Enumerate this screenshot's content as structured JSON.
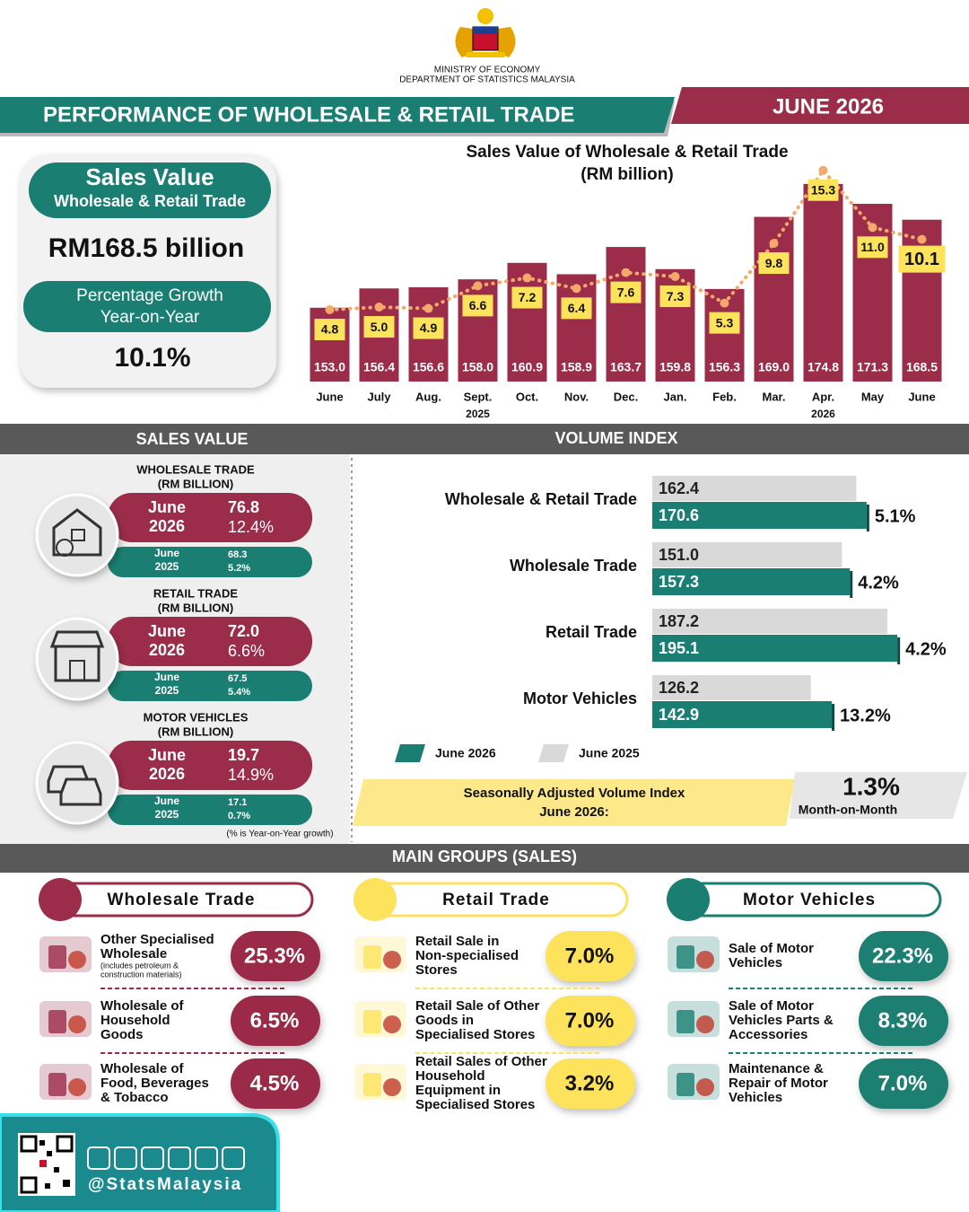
{
  "header": {
    "ministry": "MINISTRY OF ECONOMY",
    "department": "DEPARTMENT OF STATISTICS MALAYSIA",
    "title": "PERFORMANCE OF WHOLESALE & RETAIL TRADE",
    "period": "JUNE 2026"
  },
  "summary": {
    "title": "Sales Value",
    "subtitle": "Wholesale & Retail Trade",
    "value": "RM168.5 billion",
    "growth_title": "Percentage Growth",
    "growth_subtitle": "Year-on-Year",
    "growth": "10.1%"
  },
  "chart_data": [
    {
      "type": "bar",
      "title": "Sales Value of Wholesale & Retail Trade",
      "subtitle": "(RM billion)",
      "categories": [
        "June",
        "July",
        "Aug.",
        "Sept.",
        "Oct.",
        "Nov.",
        "Dec.",
        "Jan.",
        "Feb.",
        "Mar.",
        "Apr.",
        "May",
        "June"
      ],
      "year_labels": [
        "2025",
        "2026"
      ],
      "series": [
        {
          "color": "#9b2c4a",
          "values": [
            153.0,
            156.4,
            156.6,
            158.0,
            160.9,
            158.9,
            163.7,
            159.8,
            156.3,
            169.0,
            174.8,
            171.3,
            168.5
          ],
          "value_labels": [
            "153.0",
            "156.4",
            "156.6",
            "158.0",
            "160.9",
            "158.9",
            "163.7",
            "159.8",
            "156.3",
            "169.0",
            "174.8",
            "171.3",
            "168.5"
          ]
        },
        {
          "type": "line",
          "axis": "y2",
          "color": "#f4a86a",
          "label_color": "#fde25c",
          "values": [
            4.8,
            5.0,
            4.9,
            6.6,
            7.2,
            6.4,
            7.6,
            7.3,
            5.3,
            9.8,
            15.3,
            11.0,
            10.1
          ],
          "value_labels": [
            "4.8",
            "5.0",
            "4.9",
            "6.6",
            "7.2",
            "6.4",
            "7.6",
            "7.3",
            "5.3",
            "9.8",
            "15.3",
            "11.0",
            "10.1"
          ]
        }
      ],
      "ylim": [
        140,
        180
      ],
      "y2lim": [
        0,
        16.5
      ]
    },
    {
      "type": "hbar",
      "title": "VOLUME INDEX",
      "categories": [
        "Wholesale & Retail Trade",
        "Wholesale Trade",
        "Retail Trade",
        "Motor Vehicles"
      ],
      "series": [
        {
          "name": "June 2026",
          "color": "#1a7f72",
          "values": [
            170.6,
            157.3,
            195.1,
            142.9
          ],
          "value_labels": [
            "170.6",
            "157.3",
            "195.1",
            "142.9"
          ]
        },
        {
          "name": "June 2025",
          "color": "#d9d9d9",
          "values": [
            162.4,
            151.0,
            187.2,
            126.2
          ],
          "value_labels": [
            "162.4",
            "151.0",
            "187.2",
            "126.2"
          ]
        }
      ],
      "growth": {
        "values": [
          5.1,
          4.2,
          4.2,
          13.2
        ],
        "value_labels": [
          "5.1%",
          "4.2%",
          "4.2%",
          "13.2%"
        ]
      },
      "xlim": [
        0,
        250
      ]
    }
  ],
  "seasonal": {
    "label_line1": "Seasonally Adjusted Volume Index",
    "label_line2": "June 2026:",
    "value": "1.3%",
    "basis": "Month-on-Month"
  },
  "sales_value": {
    "title": "SALES VALUE",
    "items": [
      {
        "title": "WHOLESALE TRADE",
        "unit": "(RM BILLION)",
        "current_month": "June",
        "current_year": "2026",
        "current_value": "76.8",
        "current_growth": "12.4%",
        "previous_month": "June",
        "previous_year": "2025",
        "previous_value": "68.3",
        "previous_growth": "5.2%"
      },
      {
        "title": "RETAIL TRADE",
        "unit": "(RM BILLION)",
        "current_month": "June",
        "current_year": "2026",
        "current_value": "72.0",
        "current_growth": "6.6%",
        "previous_month": "June",
        "previous_year": "2025",
        "previous_value": "67.5",
        "previous_growth": "5.4%"
      },
      {
        "title": "MOTOR VEHICLES",
        "unit": "(RM BILLION)",
        "current_month": "June",
        "current_year": "2026",
        "current_value": "19.7",
        "current_growth": "14.9%",
        "previous_month": "June",
        "previous_year": "2025",
        "previous_value": "17.1",
        "previous_growth": "0.7%"
      }
    ],
    "note": "(% is Year-on-Year growth)"
  },
  "main_groups": {
    "title": "MAIN GROUPS (SALES)",
    "groups": [
      {
        "name": "Wholesale Trade",
        "color": "#9b2c4a",
        "items": [
          {
            "label": [
              "Other Specialised",
              "Wholesale"
            ],
            "note": [
              "(includes petroleum &",
              "construction materials)"
            ],
            "value": "25.3%"
          },
          {
            "label": [
              "Wholesale of",
              "Household",
              "Goods"
            ],
            "value": "6.5%"
          },
          {
            "label": [
              "Wholesale of",
              "Food, Beverages",
              "& Tobacco"
            ],
            "value": "4.5%"
          }
        ]
      },
      {
        "name": "Retail Trade",
        "color": "#fde25c",
        "items": [
          {
            "label": [
              "Retail Sale in",
              "Non-specialised",
              "Stores"
            ],
            "value": "7.0%"
          },
          {
            "label": [
              "Retail Sale of Other",
              "Goods in",
              "Specialised Stores"
            ],
            "value": "7.0%"
          },
          {
            "label": [
              "Retail Sales of Other",
              "Household",
              "Equipment in",
              "Specialised Stores"
            ],
            "value": "3.2%"
          }
        ]
      },
      {
        "name": "Motor Vehicles",
        "color": "#1a7f72",
        "items": [
          {
            "label": [
              "Sale of Motor",
              "Vehicles"
            ],
            "value": "22.3%"
          },
          {
            "label": [
              "Sale of Motor",
              "Vehicles Parts &",
              "Accessories"
            ],
            "value": "8.3%"
          },
          {
            "label": [
              "Maintenance &",
              "Repair of Motor",
              "Vehicles"
            ],
            "value": "7.0%"
          }
        ]
      }
    ]
  },
  "footer": {
    "handle": "@StatsMalaysia"
  }
}
